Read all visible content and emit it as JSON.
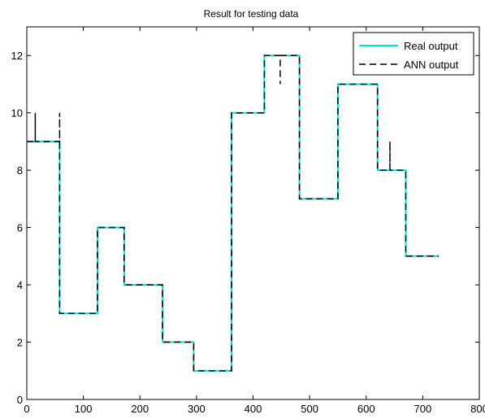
{
  "chart_data": {
    "type": "line",
    "title": "Result for testing data",
    "xlabel": "",
    "ylabel": "",
    "xlim": [
      0,
      800
    ],
    "ylim": [
      0,
      13
    ],
    "xticks": [
      0,
      100,
      200,
      300,
      400,
      500,
      600,
      700,
      800
    ],
    "yticks": [
      0,
      2,
      4,
      6,
      8,
      10,
      12
    ],
    "grid": false,
    "legend_position": "top-right",
    "series": [
      {
        "name": "Real output",
        "color": "#00e0e0",
        "style": "solid",
        "x": [
          0,
          58,
          58,
          125,
          125,
          172,
          172,
          240,
          240,
          295,
          295,
          362,
          362,
          420,
          420,
          482,
          482,
          550,
          550,
          620,
          620,
          670,
          670,
          728
        ],
        "y": [
          9,
          9,
          3,
          3,
          6,
          6,
          4,
          4,
          2,
          2,
          1,
          1,
          10,
          10,
          12,
          12,
          7,
          7,
          11,
          11,
          8,
          8,
          5,
          5
        ]
      },
      {
        "name": "ANN output",
        "color": "#000000",
        "style": "dashed",
        "x": [
          0,
          15,
          15,
          15,
          15,
          58,
          58,
          58,
          58,
          125,
          125,
          172,
          172,
          240,
          240,
          295,
          295,
          362,
          362,
          420,
          420,
          420,
          420,
          448,
          448,
          448,
          448,
          482,
          482,
          550,
          550,
          620,
          620,
          620,
          620,
          642,
          642,
          642,
          642,
          670,
          670,
          728
        ],
        "y": [
          9,
          9,
          10,
          9,
          9,
          9,
          10,
          9,
          3,
          3,
          6,
          6,
          4,
          4,
          2,
          2,
          1,
          1,
          10,
          10,
          11,
          12,
          12,
          12,
          11,
          12,
          12,
          12,
          7,
          7,
          11,
          11,
          9,
          8,
          8,
          8,
          9,
          8,
          8,
          8,
          5,
          5
        ]
      }
    ]
  }
}
